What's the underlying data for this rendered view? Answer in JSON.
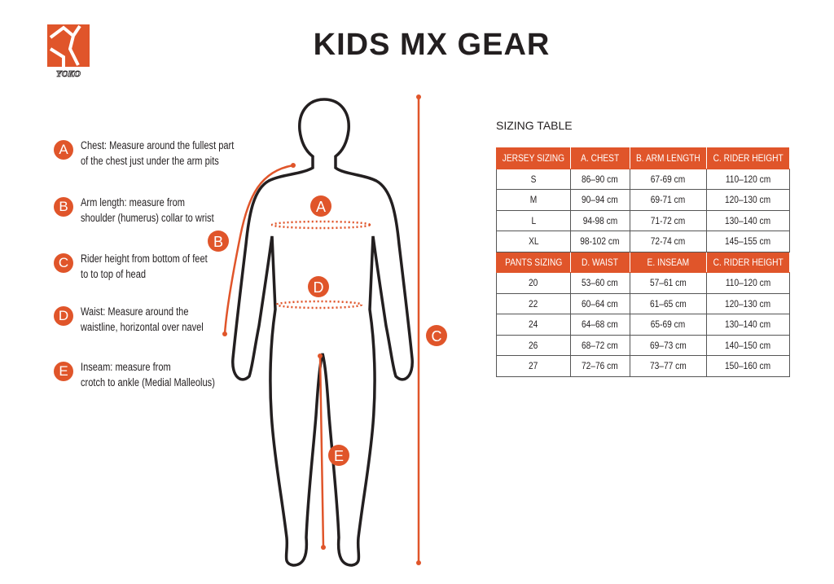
{
  "title": "KIDS MX GEAR",
  "logo": {
    "text": "YOKO",
    "color": "#e0552a"
  },
  "accent_color": "#e0552a",
  "legend": [
    {
      "letter": "A",
      "lines": [
        "Chest: Measure around  the fullest part",
        "of the chest just under the arm pits"
      ]
    },
    {
      "letter": "B",
      "lines": [
        "Arm length: measure from",
        "shoulder (humerus) collar to wrist"
      ]
    },
    {
      "letter": "C",
      "lines": [
        "Rider height from bottom of feet",
        "to to top of head"
      ]
    },
    {
      "letter": "D",
      "lines": [
        "Waist: Measure around the",
        "waistline, horizontal over navel"
      ]
    },
    {
      "letter": "E",
      "lines": [
        "Inseam: measure from",
        "crotch to ankle (Medial Malleolus)"
      ]
    }
  ],
  "figure_labels": {
    "a": "A",
    "b": "B",
    "c": "C",
    "d": "D",
    "e": "E"
  },
  "table": {
    "title": "SIZING TABLE",
    "jersey_header": [
      "JERSEY SIZING",
      "A. CHEST",
      "B. ARM LENGTH",
      "C. RIDER HEIGHT"
    ],
    "jersey_rows": [
      [
        "S",
        "86–90 cm",
        "67-69 cm",
        "110–120 cm"
      ],
      [
        "M",
        "90–94 cm",
        "69-71 cm",
        "120–130 cm"
      ],
      [
        "L",
        "94-98 cm",
        "71-72 cm",
        "130–140 cm"
      ],
      [
        "XL",
        "98-102 cm",
        "72-74 cm",
        "145–155 cm"
      ]
    ],
    "pants_header": [
      "PANTS SIZING",
      "D. WAIST",
      "E. INSEAM",
      "C. RIDER HEIGHT"
    ],
    "pants_rows": [
      [
        "20",
        "53–60 cm",
        "57–61 cm",
        "110–120 cm"
      ],
      [
        "22",
        "60–64 cm",
        "61–65 cm",
        "120–130 cm"
      ],
      [
        "24",
        "64–68 cm",
        "65-69 cm",
        "130–140 cm"
      ],
      [
        "26",
        "68–72 cm",
        "69–73 cm",
        "140–150 cm"
      ],
      [
        "27",
        "72–76 cm",
        "73–77 cm",
        "150–160 cm"
      ]
    ]
  }
}
